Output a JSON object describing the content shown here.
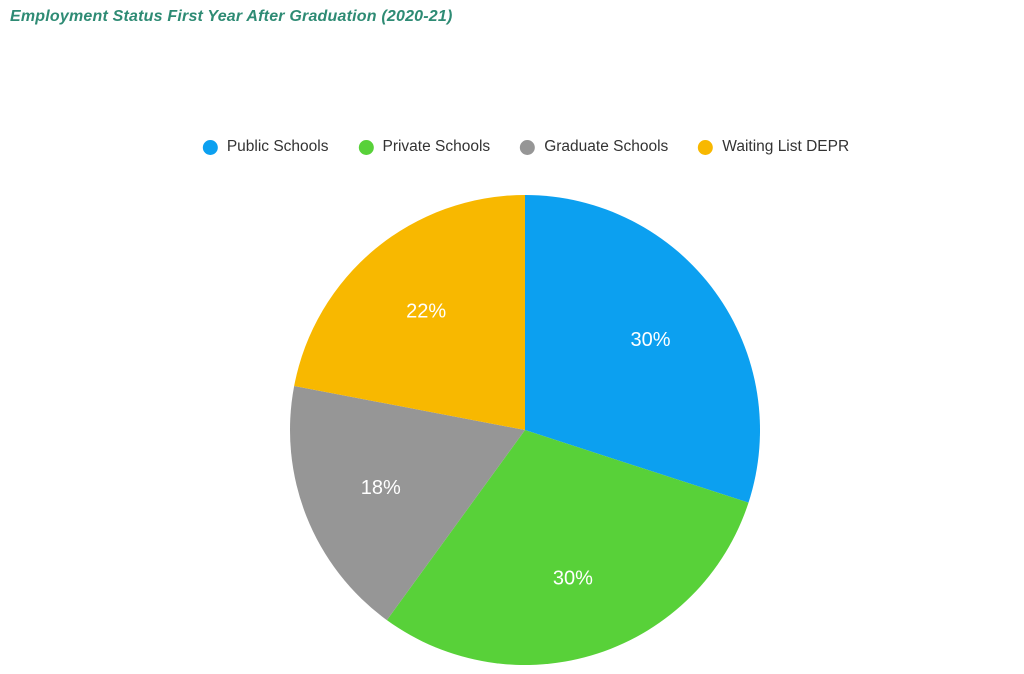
{
  "title": "Employment Status First Year After Graduation (2020-21)",
  "title_color": "#2e8b74",
  "chart_data": {
    "type": "pie",
    "title": "Employment Status First Year After Graduation (2020-21)",
    "categories": [
      "Public Schools",
      "Private Schools",
      "Graduate Schools",
      "Waiting List DEPR"
    ],
    "values": [
      30,
      30,
      18,
      22
    ],
    "slice_labels": [
      "30%",
      "30%",
      "18%",
      "22%"
    ],
    "colors": [
      "#0ca0f0",
      "#58d139",
      "#969696",
      "#f8b800"
    ],
    "slice_label_color": "#ffffff",
    "start_angle_deg": 0,
    "direction": "clockwise",
    "legend_position": "top-center",
    "background": "#ffffff"
  },
  "legend": {
    "items": [
      {
        "label": "Public Schools",
        "color": "#0ca0f0"
      },
      {
        "label": "Private Schools",
        "color": "#58d139"
      },
      {
        "label": "Graduate Schools",
        "color": "#969696"
      },
      {
        "label": "Waiting List DEPR",
        "color": "#f8b800"
      }
    ]
  }
}
